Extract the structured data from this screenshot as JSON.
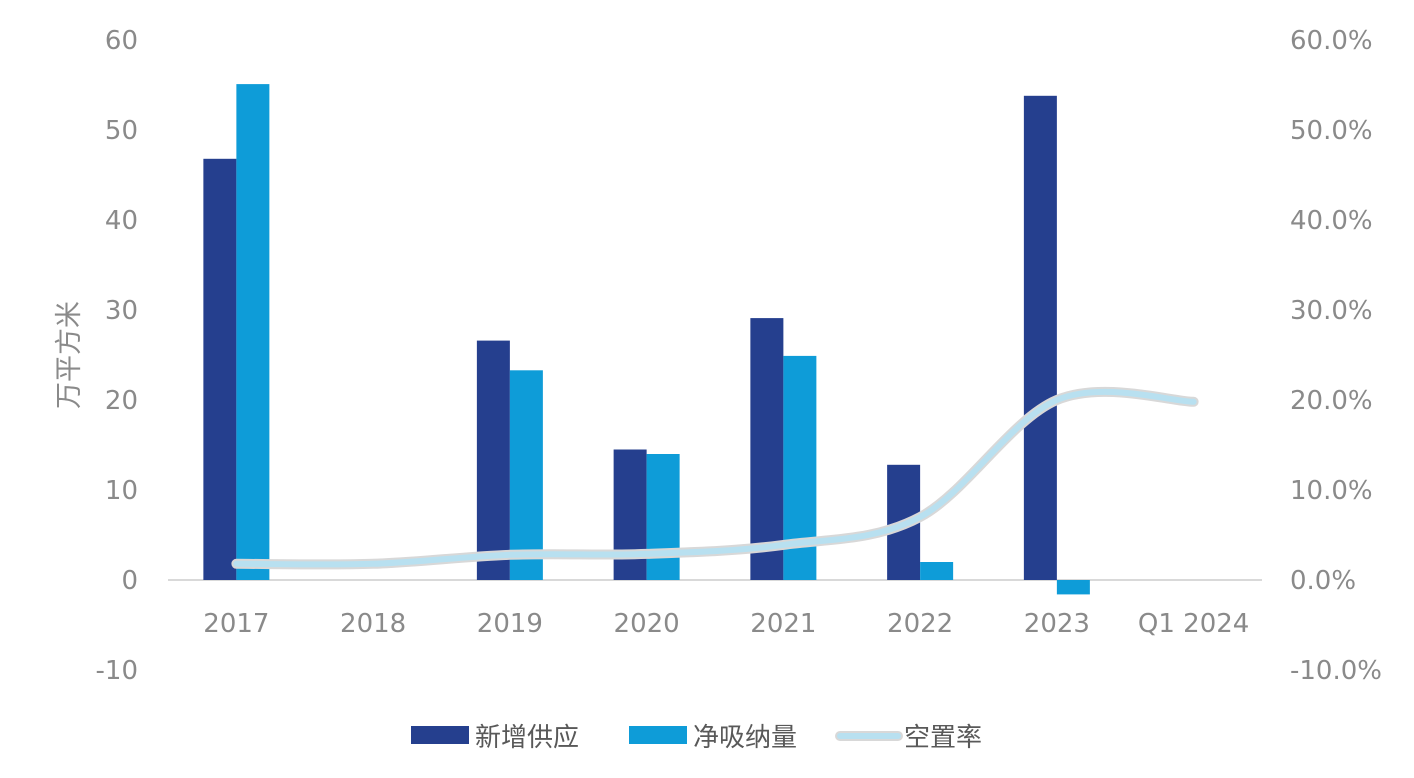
{
  "chart_data": {
    "type": "bar",
    "categories": [
      "2017",
      "2018",
      "2019",
      "2020",
      "2021",
      "2022",
      "2023",
      "Q1 2024"
    ],
    "series": [
      {
        "name": "新增供应",
        "type": "bar",
        "axis": "left",
        "color": "#253f8e",
        "values": [
          46.8,
          null,
          26.6,
          14.5,
          29.1,
          12.8,
          53.8,
          null
        ]
      },
      {
        "name": "净吸纳量",
        "type": "bar",
        "axis": "left",
        "color": "#0e9cd8",
        "values": [
          55.1,
          null,
          23.3,
          14.0,
          24.9,
          2.0,
          -1.6,
          null
        ]
      },
      {
        "name": "空置率",
        "type": "line",
        "axis": "right",
        "color": "#b8e0f0",
        "values": [
          1.8,
          1.8,
          2.8,
          2.9,
          3.9,
          7.0,
          20.0,
          19.8
        ]
      }
    ],
    "ylabel": "万平方米",
    "ylim": [
      -10,
      60
    ],
    "yticks": [
      "60",
      "50",
      "40",
      "30",
      "20",
      "10",
      "0",
      "-10"
    ],
    "y2lim": [
      -10,
      60
    ],
    "y2ticks": [
      "60.0%",
      "50.0%",
      "40.0%",
      "30.0%",
      "20.0%",
      "10.0%",
      "0.0%",
      "-10.0%"
    ],
    "legend_position": "bottom",
    "grid": false
  }
}
